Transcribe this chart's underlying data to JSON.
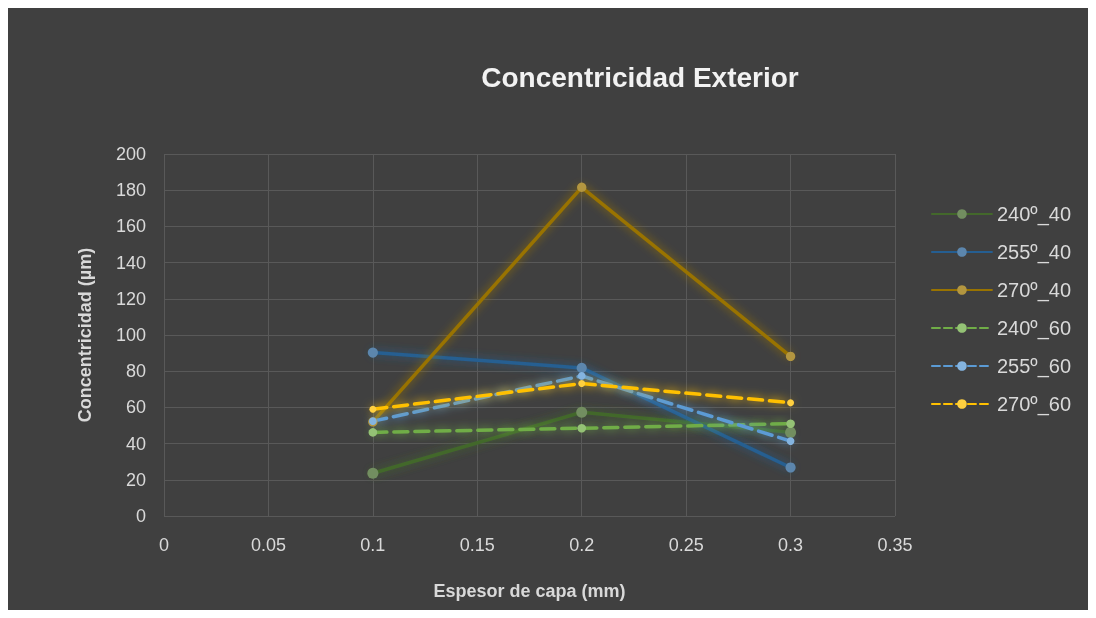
{
  "chart_data": {
    "type": "line",
    "title": "Concentricidad Exterior",
    "xlabel": "Espesor de capa (mm)",
    "ylabel": "Concentricidad (µm)",
    "x": [
      0.1,
      0.2,
      0.3
    ],
    "xlim": [
      0,
      0.35
    ],
    "xticks": [
      0,
      0.05,
      0.1,
      0.15,
      0.2,
      0.25,
      0.3,
      0.35
    ],
    "ylim": [
      0,
      200
    ],
    "yticks": [
      0,
      20,
      40,
      60,
      80,
      100,
      120,
      140,
      160,
      180,
      200
    ],
    "grid": true,
    "legend": "right",
    "marker": "circle",
    "series": [
      {
        "name": "240º_40",
        "color": "#43682b",
        "values": [
          23.6,
          57.3,
          46.2
        ],
        "line_style": "solid"
      },
      {
        "name": "255º_40",
        "color": "#255e91",
        "values": [
          90.3,
          81.8,
          26.8
        ],
        "line_style": "solid"
      },
      {
        "name": "270º_40",
        "color": "#997300",
        "values": [
          52,
          181.6,
          88.2
        ],
        "line_style": "solid"
      },
      {
        "name": "240º_60",
        "color": "#70ad47",
        "values": [
          46.2,
          48.5,
          51
        ],
        "line_style": "dashed"
      },
      {
        "name": "255º_60",
        "color": "#5b9bd5",
        "values": [
          52.4,
          77.4,
          41.4
        ],
        "line_style": "dashed"
      },
      {
        "name": "270º_60",
        "color": "#ffc000",
        "values": [
          59,
          73.2,
          62.6
        ],
        "line_style": "dashed"
      }
    ]
  }
}
